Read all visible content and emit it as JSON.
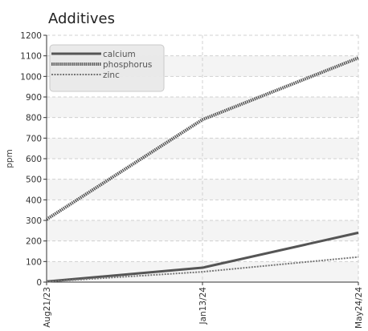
{
  "chart_data": {
    "type": "line",
    "title": "Additives",
    "xlabel": "",
    "ylabel": "ppm",
    "x": [
      "Aug21/23",
      "Jan13/24",
      "May24/24"
    ],
    "ylim": [
      0,
      1200
    ],
    "yticks": [
      0,
      100,
      200,
      300,
      400,
      500,
      600,
      700,
      800,
      900,
      1000,
      1100,
      1200
    ],
    "grid": true,
    "legend_position": "top-left",
    "series": [
      {
        "name": "calcium",
        "values": [
          3,
          70,
          240
        ],
        "color": "#555555",
        "style": "solid"
      },
      {
        "name": "phosphorus",
        "values": [
          305,
          790,
          1090
        ],
        "color": "#555555",
        "style": "dotted"
      },
      {
        "name": "zinc",
        "values": [
          2,
          50,
          122
        ],
        "color": "#777777",
        "style": "dashed"
      }
    ]
  }
}
